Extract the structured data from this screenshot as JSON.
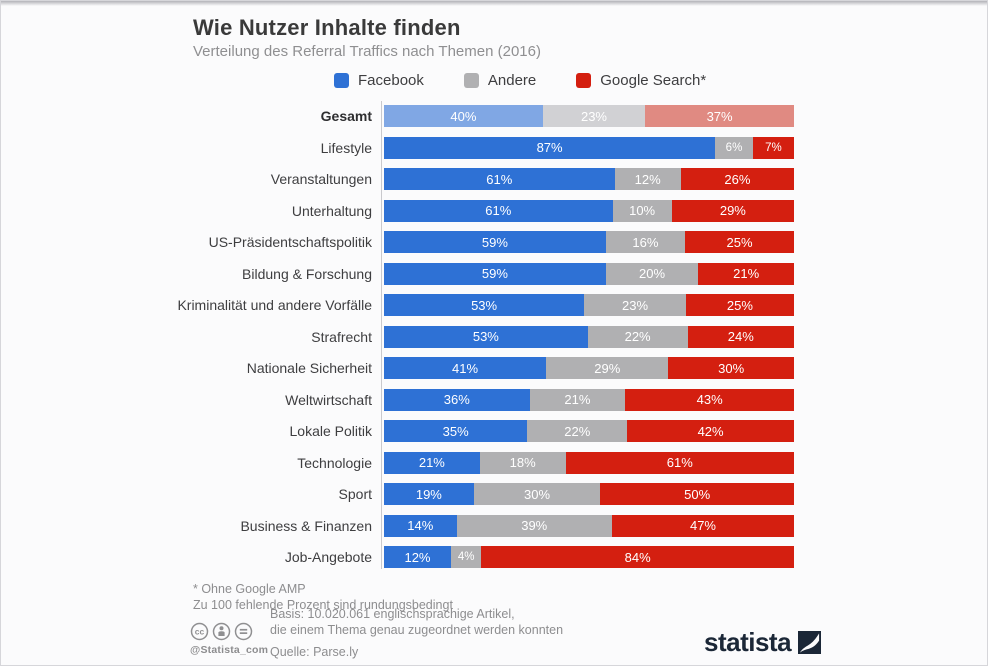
{
  "header": {
    "title": "Wie Nutzer Inhalte finden",
    "subtitle": "Verteilung des Referral Traffics nach Themen (2016)"
  },
  "legend": [
    {
      "label": "Facebook",
      "color": "#2e71d5"
    },
    {
      "label": "Andere",
      "color": "#b0b0b2"
    },
    {
      "label": "Google Search*",
      "color": "#d41f10"
    }
  ],
  "chart_data": {
    "type": "bar",
    "orientation": "horizontal",
    "stacked": true,
    "unit": "%",
    "xlim": [
      0,
      100
    ],
    "grid": false,
    "legend_position": "top",
    "series_names": [
      "Facebook",
      "Andere",
      "Google Search"
    ],
    "colors": [
      "#2e71d5",
      "#b0b0b2",
      "#d41f10"
    ],
    "muted_colors": [
      "#80a7e4",
      "#d1d1d4",
      "#e08a82"
    ],
    "rows": [
      {
        "label": "Gesamt",
        "bold": true,
        "muted": true,
        "values": [
          40,
          23,
          37
        ]
      },
      {
        "label": "Lifestyle",
        "values": [
          87,
          6,
          7
        ]
      },
      {
        "label": "Veranstaltungen",
        "values": [
          61,
          12,
          26
        ]
      },
      {
        "label": "Unterhaltung",
        "values": [
          61,
          10,
          29
        ]
      },
      {
        "label": "US-Präsidentschaftspolitik",
        "values": [
          59,
          16,
          25
        ]
      },
      {
        "label": "Bildung & Forschung",
        "values": [
          59,
          20,
          21
        ]
      },
      {
        "label": "Kriminalität und andere Vorfälle",
        "values": [
          53,
          23,
          25
        ]
      },
      {
        "label": "Strafrecht",
        "values": [
          53,
          22,
          24
        ]
      },
      {
        "label": "Nationale Sicherheit",
        "values": [
          41,
          29,
          30
        ]
      },
      {
        "label": "Weltwirtschaft",
        "values": [
          36,
          21,
          43
        ]
      },
      {
        "label": "Lokale Politik",
        "values": [
          35,
          22,
          42
        ]
      },
      {
        "label": "Technologie",
        "values": [
          21,
          18,
          61
        ]
      },
      {
        "label": "Sport",
        "values": [
          19,
          30,
          50
        ]
      },
      {
        "label": "Business & Finanzen",
        "values": [
          14,
          39,
          47
        ]
      },
      {
        "label": "Job-Angebote",
        "values": [
          12,
          4,
          84
        ]
      }
    ]
  },
  "footer": {
    "footnote1": "* Ohne Google AMP",
    "footnote2": "Zu 100 fehlende Prozent sind rundungsbedingt",
    "basis_line1": "Basis: 10.020.061 englischsprachige Artikel,",
    "basis_line2": "die einem Thema genau zugeordnet werden konnten",
    "source": "Quelle: Parse.ly",
    "twitter_handle": "@Statista_com",
    "brand": "statista"
  },
  "colors": {
    "brand_navy": "#1b2737",
    "footnote_gray": "#8d8d8f"
  }
}
